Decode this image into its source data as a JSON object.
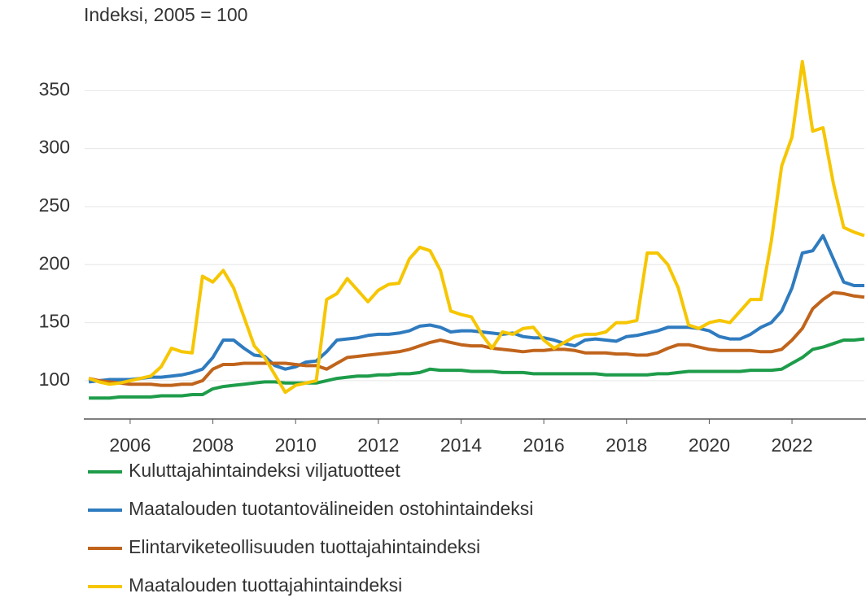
{
  "chart_data": {
    "type": "line",
    "y_axis_label": "Indeksi, 2005 = 100",
    "x": [
      2005,
      2005.25,
      2005.5,
      2005.75,
      2006,
      2006.25,
      2006.5,
      2006.75,
      2007,
      2007.25,
      2007.5,
      2007.75,
      2008,
      2008.25,
      2008.5,
      2008.75,
      2009,
      2009.25,
      2009.5,
      2009.75,
      2010,
      2010.25,
      2010.5,
      2010.75,
      2011,
      2011.25,
      2011.5,
      2011.75,
      2012,
      2012.25,
      2012.5,
      2012.75,
      2013,
      2013.25,
      2013.5,
      2013.75,
      2014,
      2014.25,
      2014.5,
      2014.75,
      2015,
      2015.25,
      2015.5,
      2015.75,
      2016,
      2016.25,
      2016.5,
      2016.75,
      2017,
      2017.25,
      2017.5,
      2017.75,
      2018,
      2018.25,
      2018.5,
      2018.75,
      2019,
      2019.25,
      2019.5,
      2019.75,
      2020,
      2020.25,
      2020.5,
      2020.75,
      2021,
      2021.25,
      2021.5,
      2021.75,
      2022,
      2022.25,
      2022.5,
      2022.75,
      2023,
      2023.25,
      2023.5,
      2023.75
    ],
    "series": [
      {
        "name": "Kuluttajahintaindeksi viljatuotteet",
        "color": "#1e9c4a",
        "values": [
          85,
          85,
          85,
          86,
          86,
          86,
          86,
          87,
          87,
          87,
          88,
          88,
          93,
          95,
          96,
          97,
          98,
          99,
          99,
          98,
          98,
          98,
          98,
          100,
          102,
          103,
          104,
          104,
          105,
          105,
          106,
          106,
          107,
          110,
          109,
          109,
          109,
          108,
          108,
          108,
          107,
          107,
          107,
          106,
          106,
          106,
          106,
          106,
          106,
          106,
          105,
          105,
          105,
          105,
          105,
          106,
          106,
          107,
          108,
          108,
          108,
          108,
          108,
          108,
          109,
          109,
          109,
          110,
          115,
          120,
          127,
          129,
          132,
          135,
          135,
          136
        ]
      },
      {
        "name": "Maatalouden tuotantovälineiden ostohintaindeksi",
        "color": "#2f7bbf",
        "values": [
          99,
          100,
          101,
          101,
          101,
          102,
          103,
          103,
          104,
          105,
          107,
          110,
          120,
          135,
          135,
          128,
          122,
          121,
          113,
          110,
          112,
          116,
          117,
          125,
          135,
          136,
          137,
          139,
          140,
          140,
          141,
          143,
          147,
          148,
          146,
          142,
          143,
          143,
          142,
          141,
          140,
          141,
          138,
          137,
          137,
          135,
          132,
          130,
          135,
          136,
          135,
          134,
          138,
          139,
          141,
          143,
          146,
          146,
          146,
          145,
          143,
          138,
          136,
          136,
          140,
          146,
          150,
          160,
          180,
          210,
          212,
          225,
          205,
          185,
          182,
          182
        ]
      },
      {
        "name": "Elintarviketeollisuuden tuottajahintaindeksi",
        "color": "#c0641c",
        "values": [
          102,
          100,
          99,
          98,
          97,
          97,
          97,
          96,
          96,
          97,
          97,
          100,
          110,
          114,
          114,
          115,
          115,
          115,
          115,
          115,
          114,
          113,
          113,
          110,
          115,
          120,
          121,
          122,
          123,
          124,
          125,
          127,
          130,
          133,
          135,
          133,
          131,
          130,
          130,
          128,
          127,
          126,
          125,
          126,
          126,
          127,
          127,
          126,
          124,
          124,
          124,
          123,
          123,
          122,
          122,
          124,
          128,
          131,
          131,
          129,
          127,
          126,
          126,
          126,
          126,
          125,
          125,
          127,
          135,
          145,
          162,
          170,
          176,
          175,
          173,
          172
        ]
      },
      {
        "name": "Maatalouden tuottajahintaindeksi",
        "color": "#f6c600",
        "values": [
          102,
          99,
          97,
          98,
          100,
          102,
          104,
          112,
          128,
          125,
          124,
          190,
          185,
          195,
          180,
          155,
          130,
          120,
          105,
          90,
          96,
          98,
          100,
          170,
          175,
          188,
          178,
          168,
          178,
          183,
          184,
          205,
          215,
          212,
          195,
          160,
          157,
          155,
          140,
          128,
          142,
          140,
          145,
          146,
          135,
          128,
          133,
          138,
          140,
          140,
          142,
          150,
          150,
          152,
          210,
          210,
          200,
          180,
          148,
          145,
          150,
          152,
          150,
          160,
          170,
          170,
          220,
          285,
          310,
          375,
          315,
          318,
          270,
          232,
          228,
          225
        ]
      }
    ],
    "xlim": [
      2004.9,
      2023.75
    ],
    "xticks": [
      2006,
      2008,
      2010,
      2012,
      2014,
      2016,
      2018,
      2020,
      2022
    ],
    "ylim": [
      67,
      400
    ],
    "yticks": [
      100,
      150,
      200,
      250,
      300,
      350
    ],
    "grid": true
  }
}
